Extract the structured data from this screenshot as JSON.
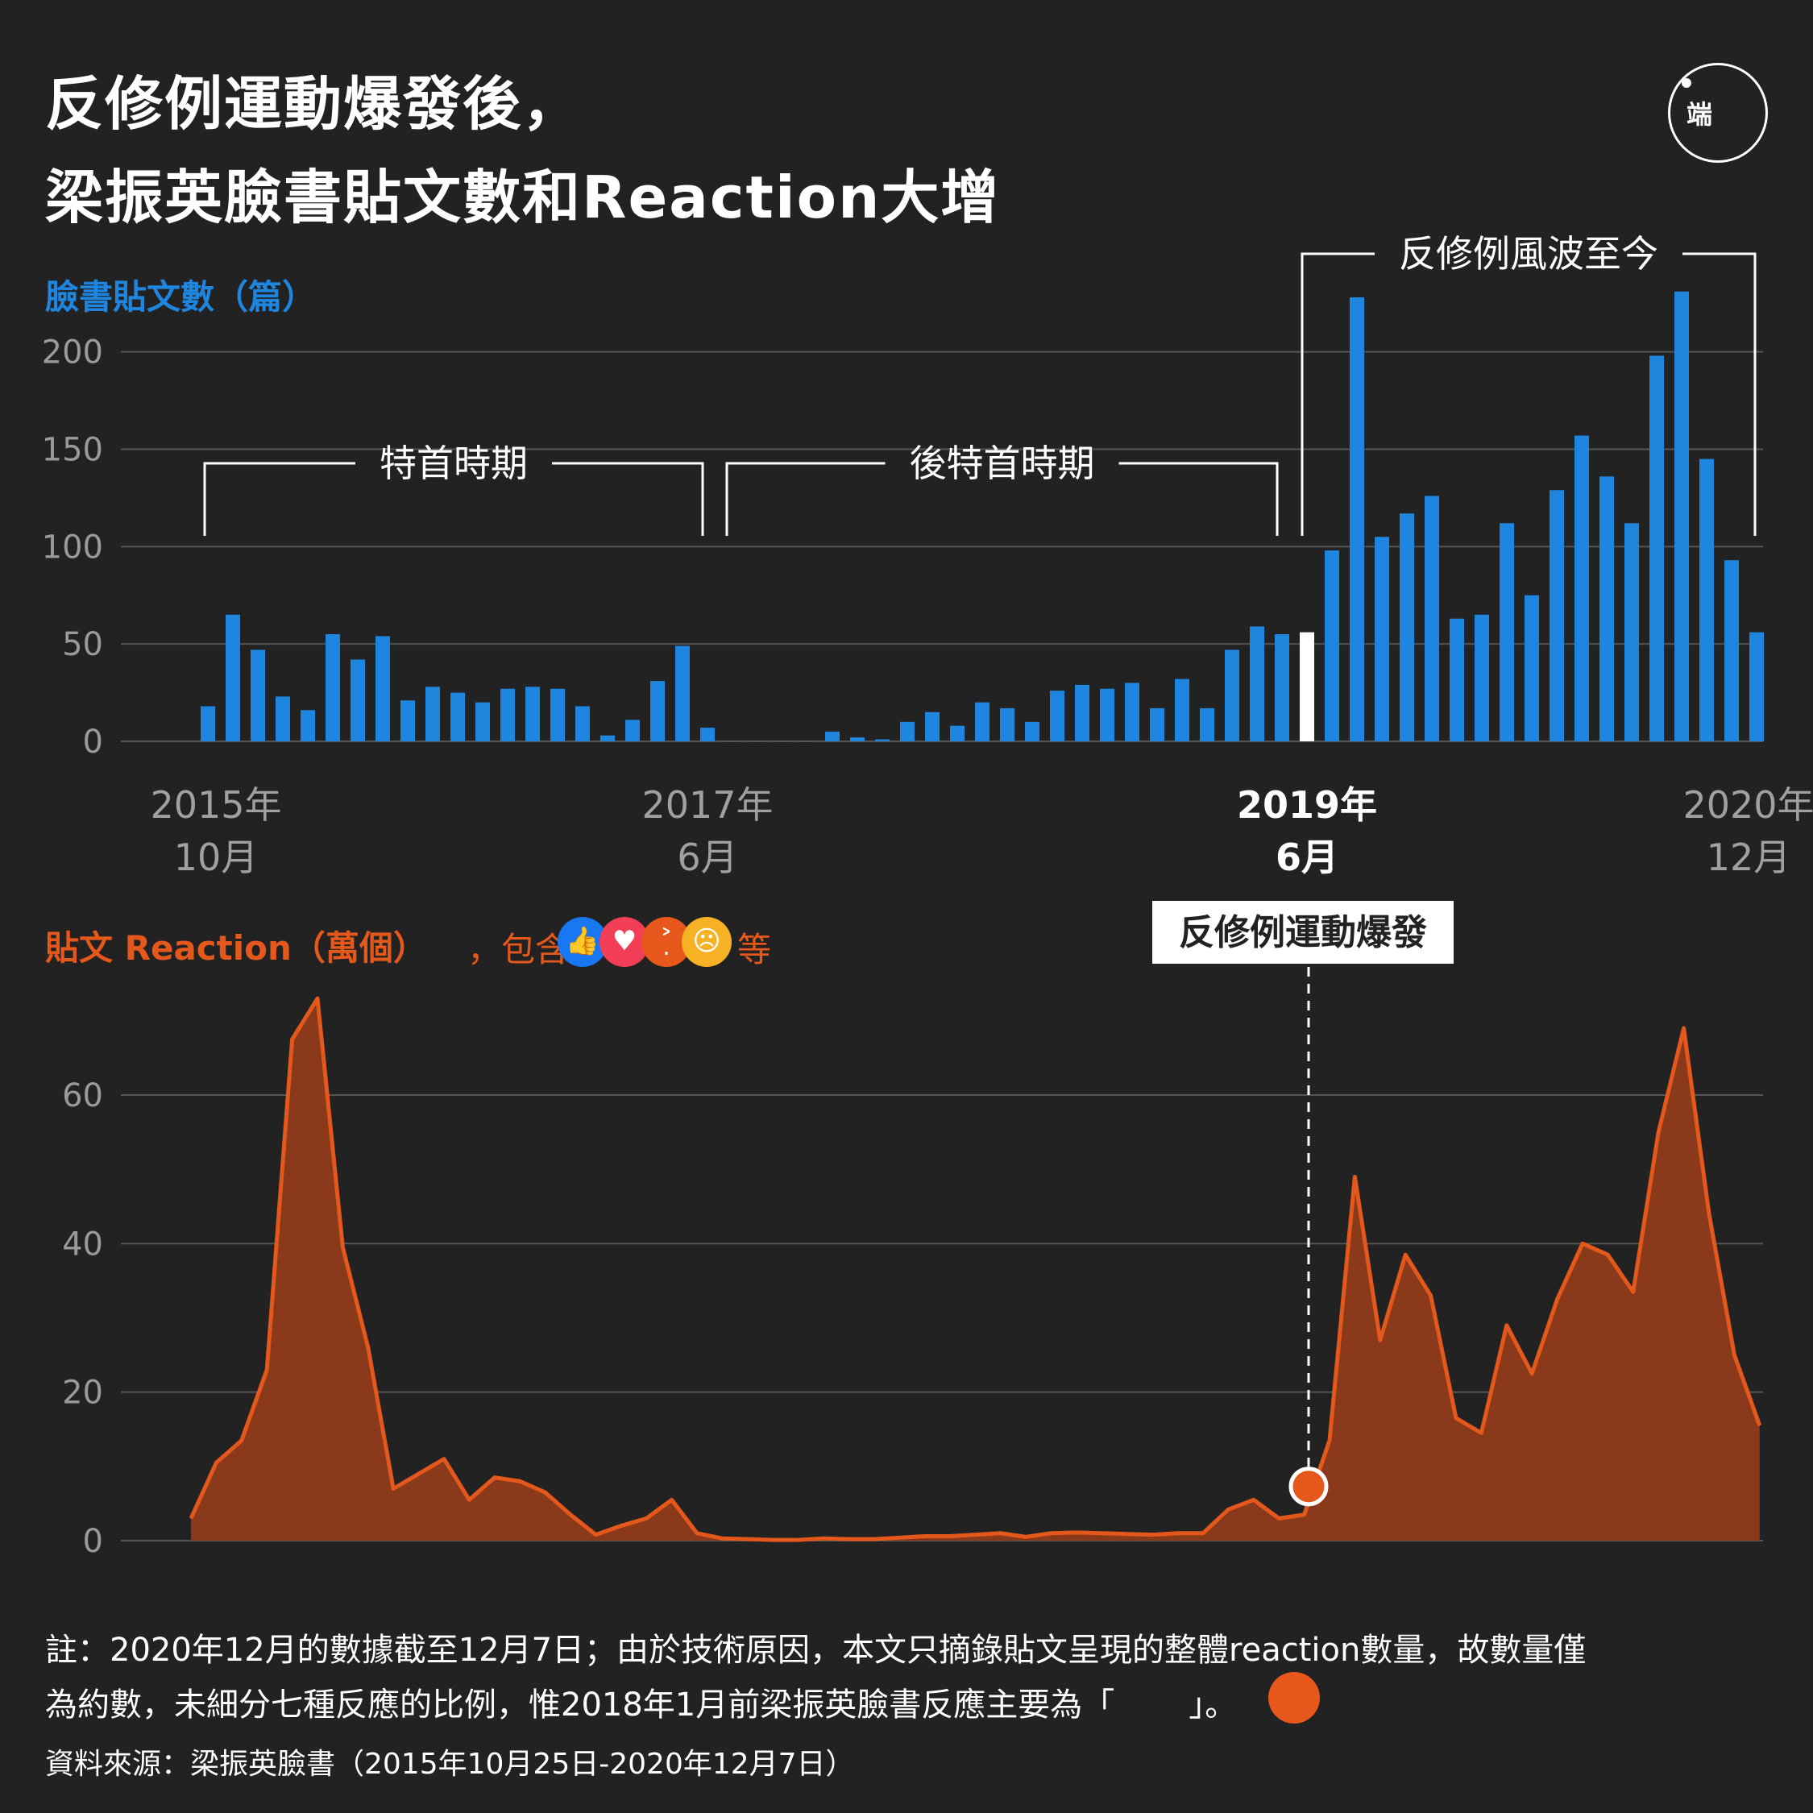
{
  "title_line1": "反修例運動爆發後，",
  "title_line2": "梁振英臉書貼文數和Reaction大增",
  "logo_text": "端",
  "posts_label": "臉書貼文數（篇）",
  "reaction_label": "貼文 Reaction（萬個）",
  "reaction_label_tail": "，包含",
  "reaction_label_end": "等",
  "emojis": [
    "like-icon",
    "love-icon",
    "angry-icon",
    "sad-icon"
  ],
  "colors": {
    "bars": "#1f86e0",
    "highlight_bar": "#ffffff",
    "area_fill": "#8a3a1a",
    "area_line": "#e5581c",
    "background": "#222222"
  },
  "note_line1": "註：2020年12月的數據截至12月7日；由於技術原因，本文只摘錄貼文呈現的整體reaction數量，故數量僅",
  "note_line2_a": "為約數，未細分七種反應的比例，惟2018年1月前梁振英臉書反應主要為「",
  "note_line2_b": "」。",
  "source": "資料來源：梁振英臉書（2015年10月25日-2020年12月7日）",
  "chart_data": [
    {
      "type": "bar",
      "ylabel": "臉書貼文數（篇）",
      "ylim": [
        0,
        240
      ],
      "yticks": [
        0,
        50,
        100,
        150,
        200
      ],
      "grid": true,
      "x_tick_labels": [
        {
          "line1": "2015年",
          "line2": "10月",
          "index": 0
        },
        {
          "line1": "2017年",
          "line2": "6月",
          "index": 20
        },
        {
          "line1": "2019年",
          "line2": "6月",
          "index": 44,
          "bold": true
        },
        {
          "line1": "2020年",
          "line2": "12月",
          "index": 62
        }
      ],
      "highlight_index": 44,
      "values": [
        18,
        65,
        47,
        23,
        16,
        55,
        42,
        54,
        21,
        28,
        25,
        20,
        27,
        28,
        27,
        18,
        3,
        11,
        31,
        49,
        7,
        0,
        0,
        0,
        0,
        5,
        2,
        1,
        10,
        15,
        8,
        20,
        17,
        10,
        26,
        29,
        27,
        30,
        17,
        32,
        17,
        47,
        59,
        55,
        56,
        98,
        228,
        105,
        117,
        126,
        63,
        65,
        112,
        75,
        129,
        157,
        136,
        112,
        198,
        231,
        145,
        93,
        56
      ],
      "annotations": [
        {
          "label": "特首時期",
          "from_index": 0,
          "to_index": 20
        },
        {
          "label": "後特首時期",
          "from_index": 21,
          "to_index": 43
        },
        {
          "label": "反修例風波至今",
          "from_index": 44,
          "to_index": 62
        }
      ]
    },
    {
      "type": "area",
      "ylabel": "貼文 Reaction（萬個）",
      "ylim": [
        0,
        72
      ],
      "yticks": [
        0,
        20,
        40,
        60
      ],
      "grid": true,
      "highlight_index": 44,
      "highlight_label": "反修例運動爆發",
      "values": [
        3,
        10.5,
        13.5,
        23,
        67.5,
        73,
        39.5,
        26,
        7,
        9,
        11,
        5.5,
        8.5,
        8,
        6.5,
        3.5,
        0.8,
        2,
        3,
        5.5,
        1,
        0.3,
        0.2,
        0.1,
        0.1,
        0.3,
        0.2,
        0.2,
        0.4,
        0.6,
        0.6,
        0.8,
        1,
        0.5,
        1,
        1.1,
        1,
        0.9,
        0.8,
        1,
        1,
        4.2,
        5.5,
        3,
        3.5,
        13.5,
        49,
        27,
        38.5,
        33,
        16.5,
        14.5,
        29,
        22.5,
        32.5,
        40,
        38.5,
        33.5,
        55,
        69,
        44,
        25,
        15.5
      ]
    }
  ]
}
